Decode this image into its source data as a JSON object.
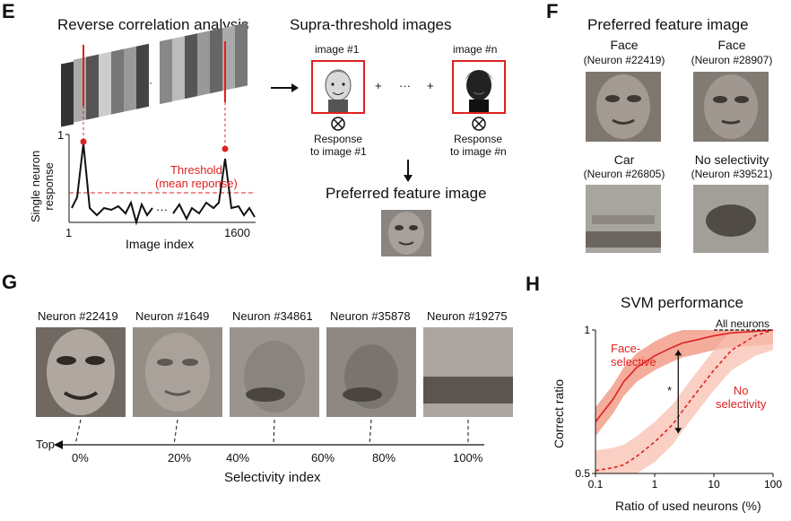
{
  "panels": {
    "E": {
      "letter": "E",
      "title_left": "Reverse correlation analysis",
      "title_right": "Supra-threshold images",
      "image1_label": "image #1",
      "imagen_label": "image #n",
      "plus": "+",
      "dots": "···",
      "response1": [
        "Response",
        "to image #1"
      ],
      "responsen": [
        "Response",
        "to image #n"
      ],
      "pref_title": "Preferred feature image",
      "y_axis_label": [
        "Single neuron",
        "response"
      ],
      "y_tick_top": "1",
      "x_axis_label": "Image index",
      "x_tick_left": "1",
      "x_tick_right": "1600",
      "threshold_label": [
        "Threshold",
        "(mean reponse)"
      ]
    },
    "F": {
      "letter": "F",
      "title": "Preferred feature image",
      "items": [
        {
          "category": "Face",
          "neuron": "(Neuron #22419)"
        },
        {
          "category": "Face",
          "neuron": "(Neuron #28907)"
        },
        {
          "category": "Car",
          "neuron": "(Neuron #26805)"
        },
        {
          "category": "No selectivity",
          "neuron": "(Neuron #39521)"
        }
      ]
    },
    "G": {
      "letter": "G",
      "neurons": [
        "Neuron #22419",
        "Neuron #1649",
        "Neuron #34861",
        "Neuron #35878",
        "Neuron #19275"
      ],
      "top_label": "Top",
      "ticks": [
        "0%",
        "20%",
        "40%",
        "60%",
        "80%",
        "100%"
      ],
      "axis_label": "Selectivity index"
    },
    "H": {
      "letter": "H",
      "title": "SVM performance",
      "all_neurons": "All neurons",
      "face_label": [
        "Face-",
        "selective"
      ],
      "noselect_label": [
        "No",
        "selectivity"
      ],
      "asterisk": "*",
      "y_label": "Correct ratio",
      "x_label": "Ratio of used neurons (%)"
    }
  },
  "colors": {
    "red": "#e02020",
    "band_dark": "#f0907a",
    "band_light": "#f8c0b0"
  },
  "chart_data": {
    "type": "line",
    "title": "SVM performance",
    "xlabel": "Ratio of used neurons (%)",
    "ylabel": "Correct ratio",
    "x_scale": "log",
    "xlim": [
      0.1,
      100
    ],
    "ylim": [
      0.5,
      1
    ],
    "xticks": [
      "0.1",
      "1",
      "10",
      "100"
    ],
    "yticks": [
      "0.5",
      "1"
    ],
    "series": [
      {
        "name": "Face-selective",
        "style": "solid",
        "x": [
          0.1,
          0.2,
          0.3,
          0.5,
          1,
          2,
          3,
          5,
          10,
          20,
          50,
          100
        ],
        "y": [
          0.68,
          0.76,
          0.82,
          0.87,
          0.91,
          0.94,
          0.955,
          0.965,
          0.98,
          0.99,
          0.995,
          1.0
        ]
      },
      {
        "name": "No selectivity",
        "style": "dashed",
        "x": [
          0.1,
          0.2,
          0.3,
          0.5,
          1,
          2,
          3,
          5,
          10,
          20,
          50,
          100
        ],
        "y": [
          0.51,
          0.52,
          0.53,
          0.56,
          0.61,
          0.67,
          0.72,
          0.78,
          0.86,
          0.93,
          0.98,
          1.0
        ]
      }
    ],
    "reference": {
      "name": "All neurons",
      "y": 1.0
    }
  }
}
